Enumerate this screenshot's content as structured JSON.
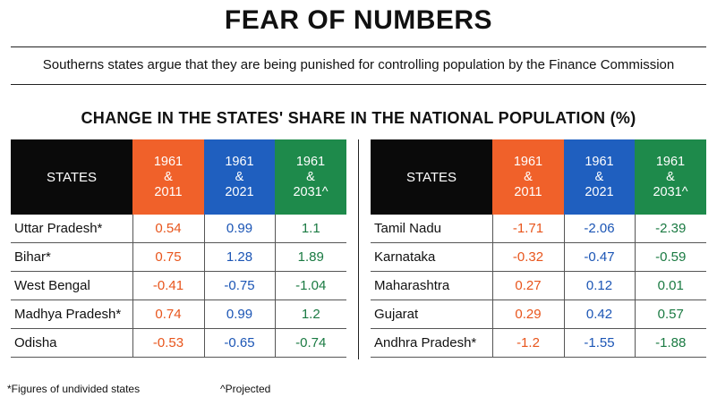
{
  "title": "FEAR OF NUMBERS",
  "subtitle": "Southerns states argue that they are being punished for controlling population by the Finance Commission",
  "chart_data": {
    "type": "table",
    "title": "CHANGE IN THE STATES' SHARE IN THE NATIONAL POPULATION (%)",
    "columns": [
      "STATES",
      "1961 & 2011",
      "1961 & 2021",
      "1961 & 2031^"
    ],
    "header_lines": {
      "states": "STATES",
      "c1": [
        "1961",
        "&",
        "2011"
      ],
      "c2": [
        "1961",
        "&",
        "2021"
      ],
      "c3": [
        "1961",
        "&",
        "2031^"
      ]
    },
    "column_colors": {
      "states": "#0a0a0a",
      "c1": "#f0612a",
      "c2": "#1f5fbf",
      "c3": "#1e8a4b"
    },
    "left_rows": [
      {
        "state": "Uttar Pradesh*",
        "v1": "0.54",
        "v2": "0.99",
        "v3": "1.1"
      },
      {
        "state": "Bihar*",
        "v1": "0.75",
        "v2": "1.28",
        "v3": "1.89"
      },
      {
        "state": "West Bengal",
        "v1": "-0.41",
        "v2": "-0.75",
        "v3": "-1.04"
      },
      {
        "state": "Madhya Pradesh*",
        "v1": "0.74",
        "v2": "0.99",
        "v3": "1.2"
      },
      {
        "state": "Odisha",
        "v1": "-0.53",
        "v2": "-0.65",
        "v3": "-0.74"
      }
    ],
    "right_rows": [
      {
        "state": "Tamil Nadu",
        "v1": "-1.71",
        "v2": "-2.06",
        "v3": "-2.39"
      },
      {
        "state": "Karnataka",
        "v1": "-0.32",
        "v2": "-0.47",
        "v3": "-0.59"
      },
      {
        "state": "Maharashtra",
        "v1": "0.27",
        "v2": "0.12",
        "v3": "0.01"
      },
      {
        "state": "Gujarat",
        "v1": "0.29",
        "v2": "0.42",
        "v3": "0.57"
      },
      {
        "state": "Andhra Pradesh*",
        "v1": "-1.2",
        "v2": "-1.55",
        "v3": "-1.88"
      }
    ]
  },
  "footnotes": {
    "undivided": "*Figures of undivided states",
    "projected": "^Projected"
  }
}
